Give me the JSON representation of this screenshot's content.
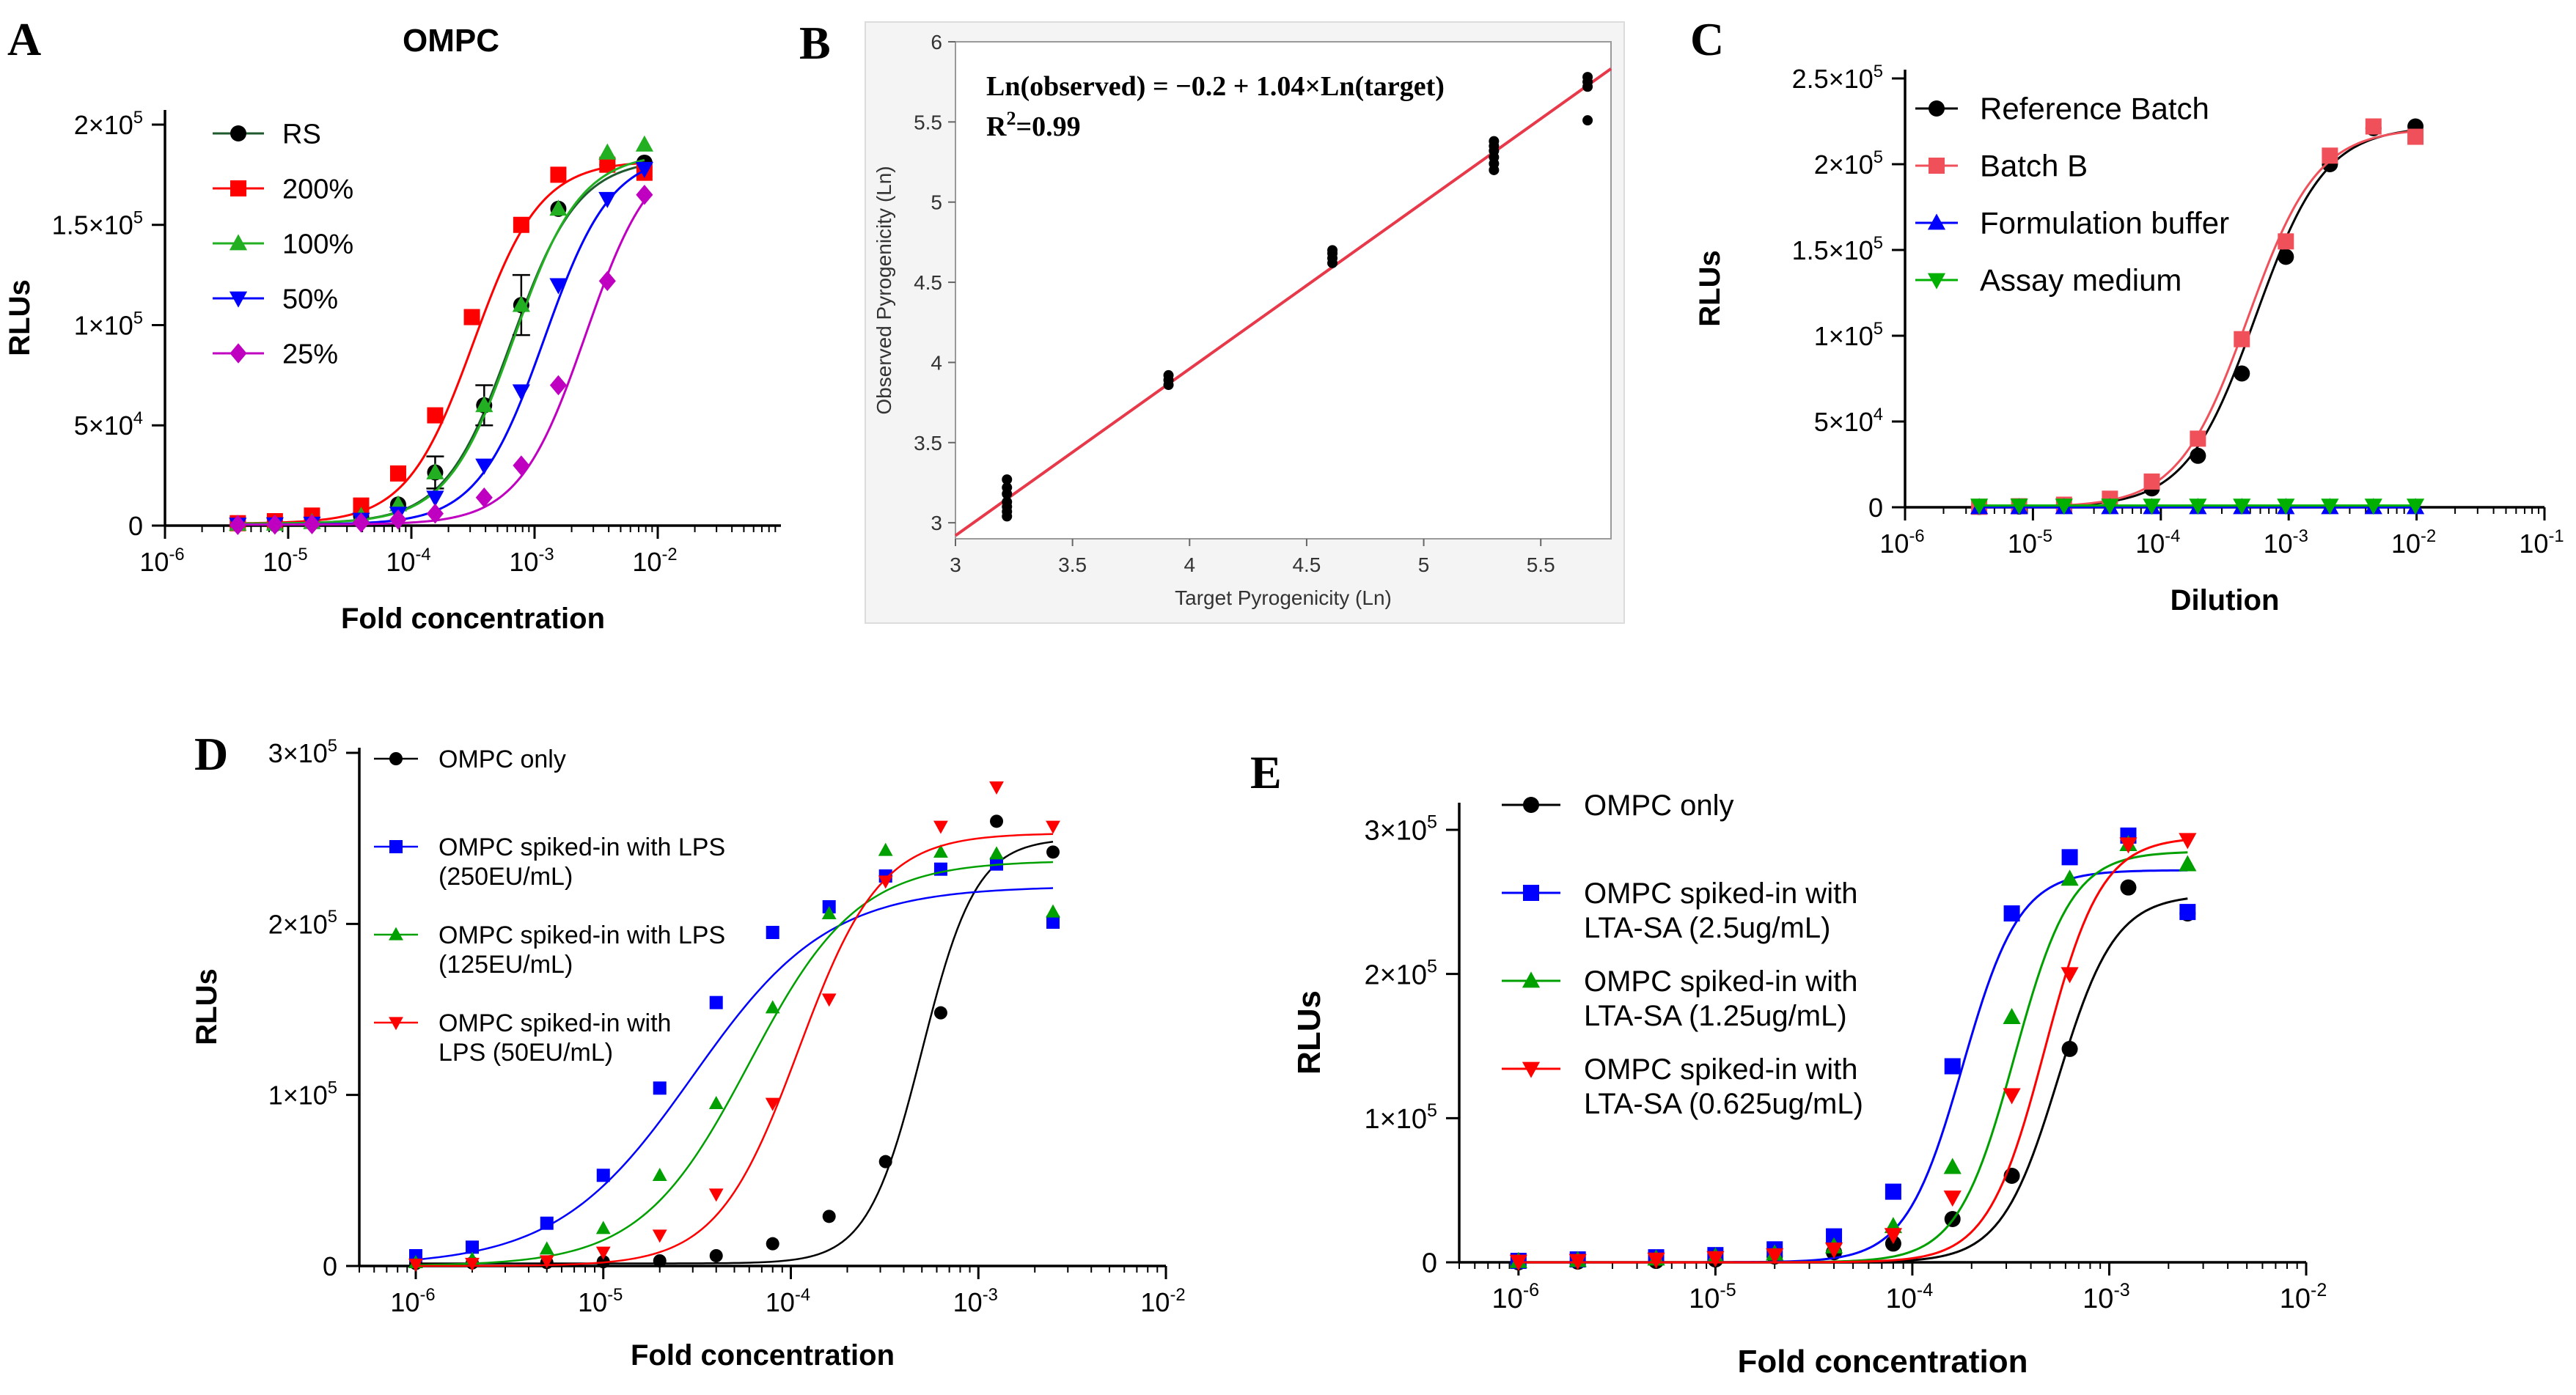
{
  "chart_data": [
    {
      "panel": "A",
      "type": "line",
      "title": "OMPC",
      "xlabel": "Fold concentration",
      "ylabel": "RLUs",
      "xscale": "log",
      "xlim": [
        1e-06,
        0.1
      ],
      "ylim": [
        0,
        200000
      ],
      "x_ticks": [
        "-6",
        "-5",
        "-4",
        "-3",
        "-2"
      ],
      "y_ticks": [
        {
          "value": 0,
          "mant": "0",
          "exp": ""
        },
        {
          "value": 50000,
          "mant": "5×10",
          "exp": "4"
        },
        {
          "value": 100000,
          "mant": "1×10",
          "exp": "5"
        },
        {
          "value": 150000,
          "mant": "1.5×10",
          "exp": "5"
        },
        {
          "value": 200000,
          "mant": "2×10",
          "exp": "5"
        }
      ],
      "legend_position": "top-left",
      "series": [
        {
          "name": "RS",
          "color": "#000000",
          "line": "#1f5a2e",
          "marker": "circle",
          "top": 183000,
          "bottom": 1000,
          "ec50": 0.00065,
          "hill": 1.6,
          "x": [
            3.9e-06,
            7.8e-06,
            1.56e-05,
            3.91e-05,
            7.81e-05,
            0.000156,
            0.00039,
            0.00078,
            0.00156,
            0.0039,
            0.0078
          ],
          "y": [
            800,
            900,
            1700,
            4800,
            10500,
            26500,
            60000,
            110000,
            158000,
            180000,
            181000
          ],
          "err": [
            0,
            0,
            0,
            0,
            0,
            8000,
            10000,
            15000,
            0,
            0,
            0
          ]
        },
        {
          "name": "200%",
          "color": "#ff0000",
          "line": "#ff0000",
          "marker": "square",
          "top": 182000,
          "bottom": 1000,
          "ec50": 0.00032,
          "hill": 1.6,
          "x": [
            3.9e-06,
            7.8e-06,
            1.56e-05,
            3.91e-05,
            7.81e-05,
            0.000156,
            0.00031,
            0.00078,
            0.00156,
            0.0039,
            0.0078
          ],
          "y": [
            1200,
            2200,
            5000,
            10000,
            26000,
            55000,
            104000,
            150000,
            175000,
            180000,
            176000
          ]
        },
        {
          "name": "100%",
          "color": "#22b022",
          "line": "#22b022",
          "marker": "triangle-up",
          "top": 186000,
          "bottom": 1000,
          "ec50": 0.00068,
          "hill": 1.6,
          "x": [
            3.9e-06,
            7.8e-06,
            1.56e-05,
            3.91e-05,
            7.81e-05,
            0.000156,
            0.00039,
            0.00078,
            0.00156,
            0.0039,
            0.0078
          ],
          "y": [
            800,
            900,
            1700,
            4800,
            10500,
            26500,
            60000,
            110000,
            158000,
            186000,
            190000
          ]
        },
        {
          "name": "50%",
          "color": "#0000ff",
          "line": "#0000ff",
          "marker": "triangle-down",
          "top": 186000,
          "bottom": 500,
          "ec50": 0.0012,
          "hill": 1.6,
          "x": [
            3.9e-06,
            7.8e-06,
            1.56e-05,
            3.91e-05,
            7.81e-05,
            0.000156,
            0.00039,
            0.00078,
            0.00156,
            0.0039,
            0.0078
          ],
          "y": [
            500,
            700,
            1000,
            3000,
            6000,
            14000,
            30000,
            67000,
            120000,
            163000,
            178000
          ]
        },
        {
          "name": "25%",
          "color": "#c000c0",
          "line": "#c000c0",
          "marker": "diamond",
          "top": 190000,
          "bottom": 500,
          "ec50": 0.0026,
          "hill": 1.6,
          "x": [
            3.9e-06,
            7.8e-06,
            1.56e-05,
            3.91e-05,
            7.81e-05,
            0.000156,
            0.00039,
            0.00078,
            0.00156,
            0.0039,
            0.0078
          ],
          "y": [
            300,
            500,
            700,
            1500,
            3000,
            6000,
            14000,
            30000,
            70000,
            122000,
            165000
          ]
        }
      ]
    },
    {
      "panel": "B",
      "type": "scatter",
      "xlabel": "Target Pyrogenicity (Ln)",
      "ylabel": "Observed Pyrogenicity (Ln)",
      "xlim": [
        3,
        5.8
      ],
      "ylim": [
        2.9,
        6
      ],
      "x_ticks": [
        "3",
        "3.5",
        "4",
        "4.5",
        "5",
        "5.5"
      ],
      "y_ticks": [
        "3",
        "3.5",
        "4",
        "4.5",
        "5",
        "5.5",
        "6"
      ],
      "equation": "Ln(observed) = −0.2 + 1.04×Ln(target)",
      "r2_label": "R",
      "r2_sup": "2",
      "r2_value": "=0.99",
      "fit": {
        "intercept": -0.2,
        "slope": 1.04,
        "color": "#e8394a"
      },
      "points": {
        "x": [
          3.22,
          3.22,
          3.22,
          3.22,
          3.22,
          3.22,
          3.22,
          3.91,
          3.91,
          3.91,
          4.61,
          4.61,
          4.61,
          4.61,
          5.3,
          5.3,
          5.3,
          5.3,
          5.3,
          5.3,
          5.7,
          5.7,
          5.7,
          5.7
        ],
        "y": [
          3.04,
          3.07,
          3.1,
          3.13,
          3.18,
          3.22,
          3.27,
          3.86,
          3.89,
          3.92,
          4.62,
          4.65,
          4.68,
          4.7,
          5.2,
          5.24,
          5.28,
          5.32,
          5.35,
          5.38,
          5.51,
          5.72,
          5.75,
          5.78
        ]
      }
    },
    {
      "panel": "C",
      "type": "line",
      "xlabel": "Dilution",
      "ylabel": "RLUs",
      "xscale": "log",
      "xlim": [
        1e-06,
        0.1
      ],
      "ylim": [
        0,
        250000
      ],
      "x_ticks": [
        "-6",
        "-5",
        "-4",
        "-3",
        "-2",
        "-1"
      ],
      "y_ticks": [
        {
          "value": 0,
          "mant": "0",
          "exp": ""
        },
        {
          "value": 50000,
          "mant": "5×10",
          "exp": "4"
        },
        {
          "value": 100000,
          "mant": "1×10",
          "exp": "5"
        },
        {
          "value": 150000,
          "mant": "1.5×10",
          "exp": "5"
        },
        {
          "value": 200000,
          "mant": "2×10",
          "exp": "5"
        },
        {
          "value": 250000,
          "mant": "2.5×10",
          "exp": "5"
        }
      ],
      "legend_position": "top-left",
      "series": [
        {
          "name": "Reference Batch",
          "color": "#000000",
          "line": "#000000",
          "marker": "circle",
          "top": 222000,
          "bottom": 0,
          "ec50": 0.00055,
          "hill": 1.6,
          "x": [
            3.8e-06,
            7.8e-06,
            1.75e-05,
            4e-05,
            8.5e-05,
            0.000195,
            0.00043,
            0.00095,
            0.0021,
            0.0046,
            0.0098
          ],
          "y": [
            200,
            400,
            1000,
            3500,
            11000,
            30000,
            78000,
            146000,
            200000,
            221000,
            222000
          ]
        },
        {
          "name": "Batch B",
          "color": "#f0505a",
          "line": "#f0505a",
          "marker": "square",
          "top": 221000,
          "bottom": 0,
          "ec50": 0.00048,
          "hill": 1.6,
          "x": [
            3.8e-06,
            7.8e-06,
            1.75e-05,
            4e-05,
            8.5e-05,
            0.000195,
            0.00043,
            0.00095,
            0.0021,
            0.0046,
            0.0098
          ],
          "y": [
            300,
            600,
            1500,
            5000,
            15000,
            40000,
            98000,
            155000,
            205000,
            222000,
            216000
          ]
        },
        {
          "name": "Formulation buffer",
          "color": "#0000ff",
          "line": "#0000ff",
          "marker": "triangle-up",
          "x": [
            3.8e-06,
            7.8e-06,
            1.75e-05,
            4e-05,
            8.5e-05,
            0.000195,
            0.00043,
            0.00095,
            0.0021,
            0.0046,
            0.0098
          ],
          "y": [
            0,
            0,
            0,
            0,
            0,
            0,
            0,
            0,
            0,
            0,
            0
          ]
        },
        {
          "name": "Assay medium",
          "color": "#00b000",
          "line": "#00b000",
          "marker": "triangle-down",
          "x": [
            3.8e-06,
            7.8e-06,
            1.75e-05,
            4e-05,
            8.5e-05,
            0.000195,
            0.00043,
            0.00095,
            0.0021,
            0.0046,
            0.0098
          ],
          "y": [
            1000,
            1000,
            1000,
            1000,
            1000,
            1000,
            1000,
            1000,
            1000,
            1000,
            1000
          ]
        }
      ]
    },
    {
      "panel": "D",
      "type": "line",
      "xlabel": "Fold concentration",
      "ylabel": "RLUs",
      "xscale": "log",
      "xlim": [
        5e-07,
        0.01
      ],
      "ylim": [
        0,
        300000
      ],
      "x_ticks": [
        "-6",
        "-5",
        "-4",
        "-3",
        "-2"
      ],
      "y_ticks": [
        {
          "value": 0,
          "mant": "0",
          "exp": ""
        },
        {
          "value": 100000,
          "mant": "1×10",
          "exp": "5"
        },
        {
          "value": 200000,
          "mant": "2×10",
          "exp": "5"
        },
        {
          "value": 300000,
          "mant": "3×10",
          "exp": "5"
        }
      ],
      "legend_position": "top-left",
      "series": [
        {
          "name": "OMPC only",
          "name2": "",
          "color": "#000000",
          "line": "#000000",
          "marker": "circle",
          "top": 250000,
          "bottom": 1500,
          "ec50": 0.0005,
          "hill": 3.0,
          "x": [
            1e-06,
            2e-06,
            5e-06,
            1e-05,
            2e-05,
            4e-05,
            8e-05,
            0.00016,
            0.00032,
            0.00063,
            0.00125,
            0.0025
          ],
          "y": [
            1500,
            1800,
            2000,
            2500,
            3000,
            6000,
            13000,
            29000,
            61000,
            148000,
            260000,
            242000
          ]
        },
        {
          "name": "OMPC spiked-in with LPS",
          "name2": "(250EU/mL)",
          "color": "#0000ff",
          "line": "#0000ff",
          "marker": "square",
          "top": 222000,
          "bottom": 0,
          "ec50": 3e-05,
          "hill": 1.2,
          "x": [
            1e-06,
            2e-06,
            5e-06,
            1e-05,
            2e-05,
            4e-05,
            8e-05,
            0.00016,
            0.00032,
            0.00063,
            0.00125,
            0.0025
          ],
          "y": [
            6000,
            11000,
            25000,
            53000,
            104000,
            154000,
            195000,
            210000,
            228000,
            232000,
            235000,
            201000
          ]
        },
        {
          "name": "OMPC spiked-in with LPS",
          "name2": "(125EU/mL)",
          "color": "#00a000",
          "line": "#00a000",
          "marker": "triangle-up",
          "top": 237000,
          "bottom": 0,
          "ec50": 6e-05,
          "hill": 1.5,
          "x": [
            1e-06,
            2e-06,
            5e-06,
            1e-05,
            2e-05,
            4e-05,
            8e-05,
            0.00016,
            0.00032,
            0.00063,
            0.00125,
            0.0025
          ],
          "y": [
            2000,
            4000,
            10000,
            22000,
            53000,
            95000,
            151000,
            206000,
            243000,
            242000,
            241000,
            207000
          ]
        },
        {
          "name": "OMPC spiked-in with",
          "name2": "LPS (50EU/mL)",
          "color": "#ff0000",
          "line": "#ff0000",
          "marker": "triangle-down",
          "top": 253000,
          "bottom": 0,
          "ec50": 0.00011,
          "hill": 2.0,
          "x": [
            1e-06,
            2e-06,
            5e-06,
            1e-05,
            2e-05,
            4e-05,
            8e-05,
            0.00016,
            0.00032,
            0.00063,
            0.00125,
            0.0025
          ],
          "y": [
            1000,
            1500,
            3000,
            8000,
            18000,
            42000,
            95000,
            156000,
            225000,
            257000,
            280000,
            257000
          ]
        }
      ]
    },
    {
      "panel": "E",
      "type": "line",
      "xlabel": "Fold concentration",
      "ylabel": "RLUs",
      "xscale": "log",
      "xlim": [
        5e-07,
        0.01
      ],
      "ylim": [
        0,
        300000
      ],
      "x_ticks": [
        "-6",
        "-5",
        "-4",
        "-3",
        "-2"
      ],
      "y_ticks": [
        {
          "value": 0,
          "mant": "0",
          "exp": ""
        },
        {
          "value": 100000,
          "mant": "1×10",
          "exp": "5"
        },
        {
          "value": 200000,
          "mant": "2×10",
          "exp": "5"
        },
        {
          "value": 300000,
          "mant": "3×10",
          "exp": "5"
        }
      ],
      "legend_position": "top-left",
      "series": [
        {
          "name": "OMPC only",
          "name2": "",
          "color": "#000000",
          "line": "#000000",
          "marker": "circle",
          "top": 255000,
          "bottom": 0,
          "ec50": 0.00055,
          "hill": 3.0,
          "x": [
            1e-06,
            2e-06,
            5e-06,
            1e-05,
            2e-05,
            4e-05,
            8e-05,
            0.00016,
            0.00032,
            0.00063,
            0.00125,
            0.0025
          ],
          "y": [
            0,
            500,
            1000,
            2000,
            4000,
            7000,
            13000,
            30000,
            60000,
            148000,
            260000,
            242000
          ]
        },
        {
          "name": "OMPC spiked-in with",
          "name2": "LTA-SA (2.5ug/mL)",
          "color": "#0000ff",
          "line": "#0000ff",
          "marker": "square",
          "top": 272000,
          "bottom": 0,
          "ec50": 0.00018,
          "hill": 3.0,
          "x": [
            1e-06,
            2e-06,
            5e-06,
            1e-05,
            2e-05,
            4e-05,
            8e-05,
            0.00016,
            0.00032,
            0.00063,
            0.00125,
            0.0025
          ],
          "y": [
            1000,
            2000,
            3500,
            5000,
            9000,
            18000,
            49000,
            136000,
            242000,
            281000,
            296000,
            243000
          ]
        },
        {
          "name": "OMPC spiked-in with",
          "name2": "LTA-SA (1.25ug/mL)",
          "color": "#00a000",
          "line": "#00a000",
          "marker": "triangle-up",
          "top": 285000,
          "bottom": 0,
          "ec50": 0.00033,
          "hill": 3.0,
          "x": [
            1e-06,
            2e-06,
            5e-06,
            1e-05,
            2e-05,
            4e-05,
            8e-05,
            0.00016,
            0.00032,
            0.00063,
            0.00125,
            0.0025
          ],
          "y": [
            800,
            1500,
            2500,
            4000,
            6000,
            11000,
            25000,
            66000,
            170000,
            266000,
            290000,
            276000
          ]
        },
        {
          "name": "OMPC spiked-in with",
          "name2": "LTA-SA (0.625ug/mL)",
          "color": "#ff0000",
          "line": "#ff0000",
          "marker": "triangle-down",
          "top": 295000,
          "bottom": 0,
          "ec50": 0.00047,
          "hill": 3.0,
          "x": [
            1e-06,
            2e-06,
            5e-06,
            1e-05,
            2e-05,
            4e-05,
            8e-05,
            0.00016,
            0.00032,
            0.00063,
            0.00125,
            0.0025
          ],
          "y": [
            500,
            1000,
            2000,
            3000,
            5000,
            9000,
            19000,
            45000,
            116000,
            200000,
            290000,
            293000
          ]
        }
      ]
    }
  ],
  "panel_labels": {
    "A": "A",
    "B": "B",
    "C": "C",
    "D": "D",
    "E": "E"
  },
  "axis_base": "10"
}
